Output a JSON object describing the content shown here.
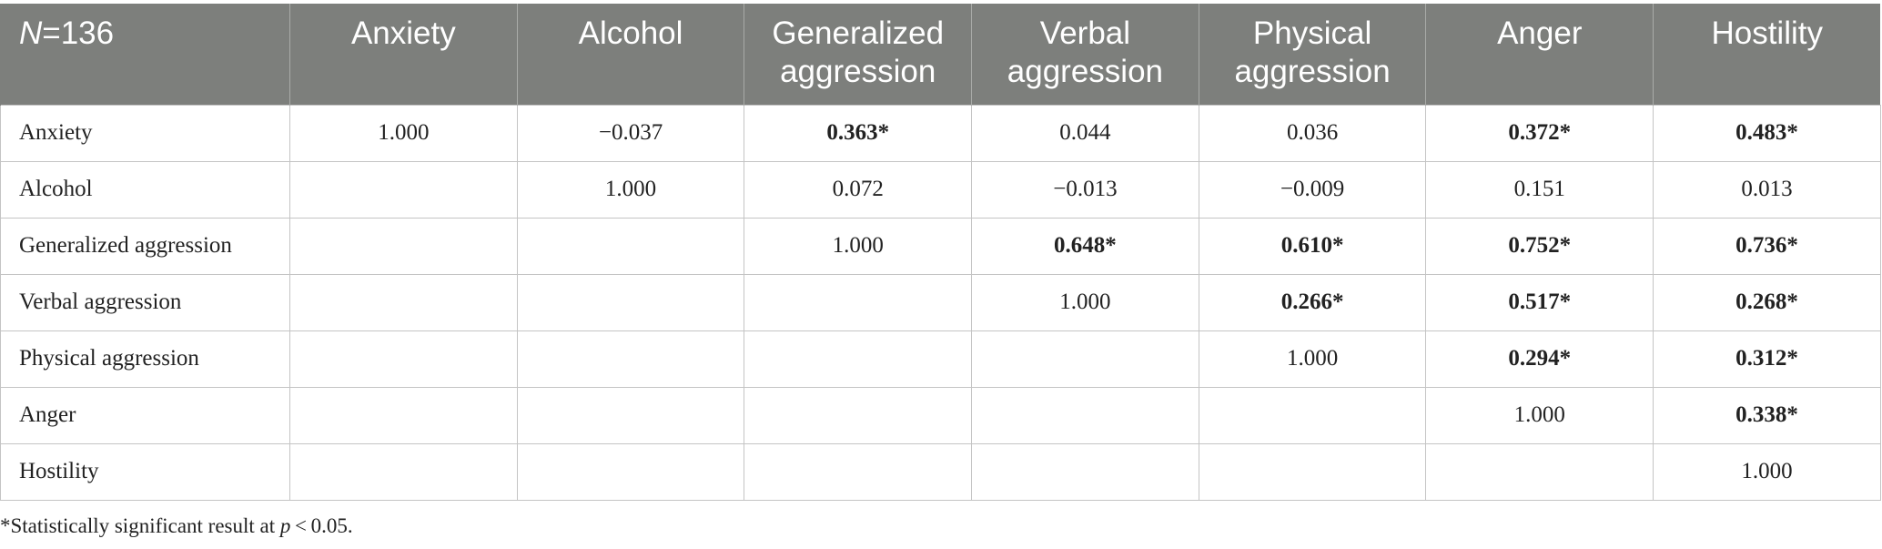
{
  "table": {
    "header": {
      "n_label": "N",
      "n_value": "=136",
      "columns": [
        "Anxiety",
        "Alcohol",
        "Generalized aggression",
        "Verbal aggression",
        "Physical aggression",
        "Anger",
        "Hostility"
      ]
    },
    "rows": [
      {
        "label": "Anxiety",
        "cells": [
          {
            "value": "1.000",
            "sig": false
          },
          {
            "value": "−0.037",
            "sig": false
          },
          {
            "value": "0.363*",
            "sig": true
          },
          {
            "value": "0.044",
            "sig": false
          },
          {
            "value": "0.036",
            "sig": false
          },
          {
            "value": "0.372*",
            "sig": true
          },
          {
            "value": "0.483*",
            "sig": true
          }
        ]
      },
      {
        "label": "Alcohol",
        "cells": [
          {
            "value": "",
            "sig": false
          },
          {
            "value": "1.000",
            "sig": false
          },
          {
            "value": "0.072",
            "sig": false
          },
          {
            "value": "−0.013",
            "sig": false
          },
          {
            "value": "−0.009",
            "sig": false
          },
          {
            "value": "0.151",
            "sig": false
          },
          {
            "value": "0.013",
            "sig": false
          }
        ]
      },
      {
        "label": "Generalized aggression",
        "cells": [
          {
            "value": "",
            "sig": false
          },
          {
            "value": "",
            "sig": false
          },
          {
            "value": "1.000",
            "sig": false
          },
          {
            "value": "0.648*",
            "sig": true
          },
          {
            "value": "0.610*",
            "sig": true
          },
          {
            "value": "0.752*",
            "sig": true
          },
          {
            "value": "0.736*",
            "sig": true
          }
        ]
      },
      {
        "label": "Verbal aggression",
        "cells": [
          {
            "value": "",
            "sig": false
          },
          {
            "value": "",
            "sig": false
          },
          {
            "value": "",
            "sig": false
          },
          {
            "value": "1.000",
            "sig": false
          },
          {
            "value": "0.266*",
            "sig": true
          },
          {
            "value": "0.517*",
            "sig": true
          },
          {
            "value": "0.268*",
            "sig": true
          }
        ]
      },
      {
        "label": "Physical aggression",
        "cells": [
          {
            "value": "",
            "sig": false
          },
          {
            "value": "",
            "sig": false
          },
          {
            "value": "",
            "sig": false
          },
          {
            "value": "",
            "sig": false
          },
          {
            "value": "1.000",
            "sig": false
          },
          {
            "value": "0.294*",
            "sig": true
          },
          {
            "value": "0.312*",
            "sig": true
          }
        ]
      },
      {
        "label": "Anger",
        "cells": [
          {
            "value": "",
            "sig": false
          },
          {
            "value": "",
            "sig": false
          },
          {
            "value": "",
            "sig": false
          },
          {
            "value": "",
            "sig": false
          },
          {
            "value": "",
            "sig": false
          },
          {
            "value": "1.000",
            "sig": false
          },
          {
            "value": "0.338*",
            "sig": true
          }
        ]
      },
      {
        "label": "Hostility",
        "cells": [
          {
            "value": "",
            "sig": false
          },
          {
            "value": "",
            "sig": false
          },
          {
            "value": "",
            "sig": false
          },
          {
            "value": "",
            "sig": false
          },
          {
            "value": "",
            "sig": false
          },
          {
            "value": "",
            "sig": false
          },
          {
            "value": "1.000",
            "sig": false
          }
        ]
      }
    ]
  },
  "footnote": {
    "prefix": "*Statistically significant result at ",
    "p": "p",
    "suffix": " < 0.05."
  },
  "colors": {
    "header_bg": "#7d7f7c",
    "header_text": "#ffffff",
    "grid": "#c4c4c4"
  }
}
